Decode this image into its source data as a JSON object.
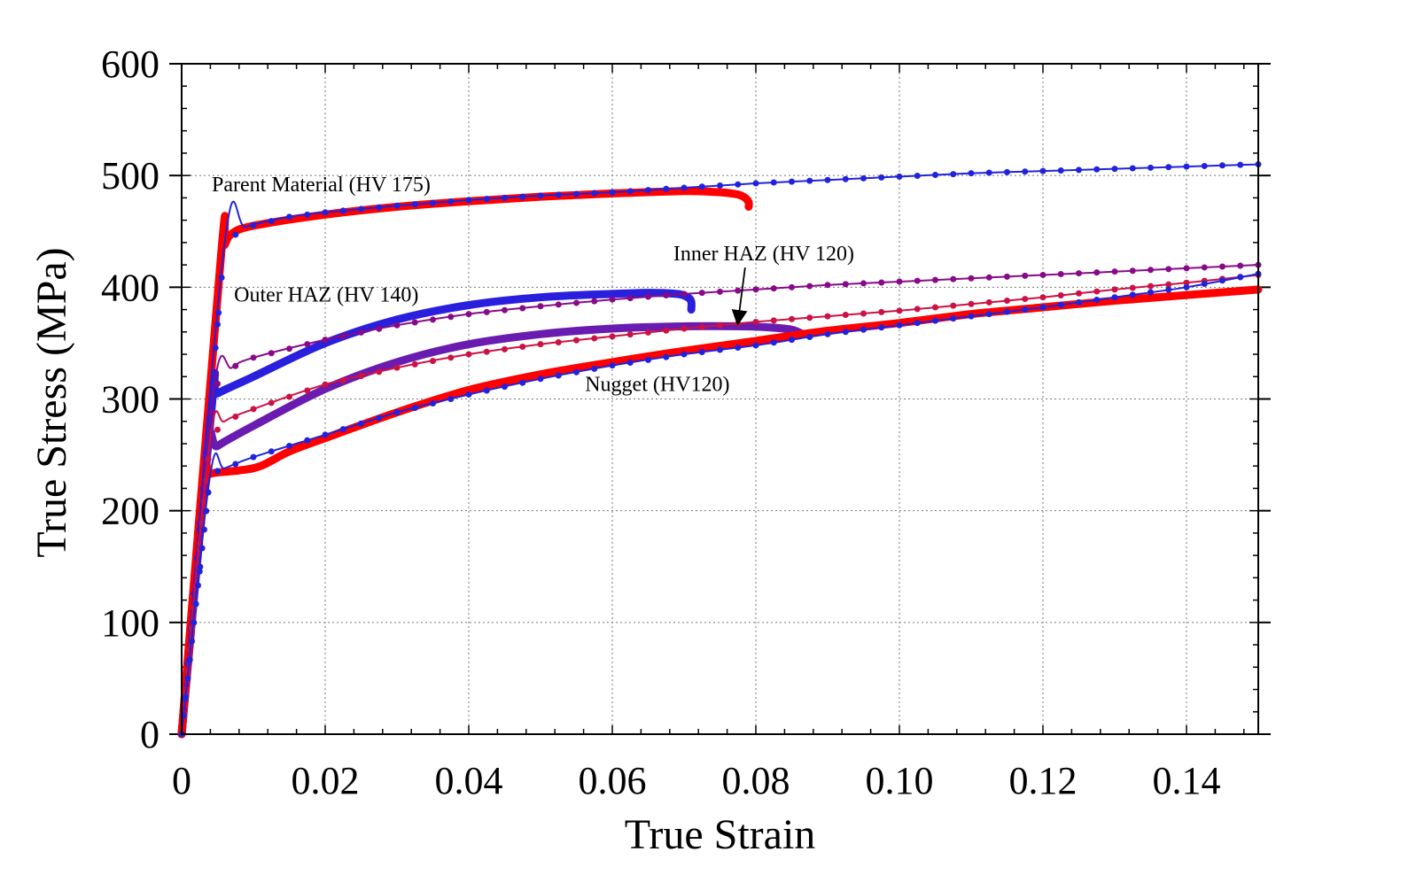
{
  "chart_data": {
    "type": "line",
    "title": "",
    "xlabel": "True Strain",
    "ylabel": "True Stress (MPa)",
    "xlim": [
      0,
      0.15
    ],
    "ylim": [
      0,
      600
    ],
    "xticks": [
      0,
      0.02,
      0.04,
      0.06,
      0.08,
      0.1,
      0.12,
      0.14
    ],
    "xtick_labels": [
      "0",
      "0.02",
      "0.04",
      "0.06",
      "0.08",
      "0.10",
      "0.12",
      "0.14"
    ],
    "yticks": [
      0,
      100,
      200,
      300,
      400,
      500,
      600
    ],
    "ytick_labels": [
      "0",
      "100",
      "200",
      "300",
      "400",
      "500",
      "600"
    ],
    "grid": true,
    "annotations": [
      {
        "text": "Parent Material (HV 175)",
        "x": 0.0042,
        "y": 486
      },
      {
        "text": "Outer HAZ (HV 140)",
        "x": 0.0073,
        "y": 387
      },
      {
        "text": "Inner HAZ (HV 120)",
        "x": 0.0685,
        "y": 424,
        "arrow_to": [
          0.0775,
          365
        ]
      },
      {
        "text": "Nugget (HV120)",
        "x": 0.0562,
        "y": 307
      }
    ],
    "series": [
      {
        "style": "thick",
        "color": "#ff0000",
        "x": [
          0,
          0.0055,
          0.006,
          0.007,
          0.01,
          0.02,
          0.03,
          0.04,
          0.05,
          0.06,
          0.07,
          0.075,
          0.0775,
          0.0785,
          0.079,
          0.079
        ],
        "y": [
          0,
          430,
          438,
          448,
          455,
          465,
          472,
          477,
          481,
          484,
          486,
          485,
          483,
          480,
          476,
          472
        ]
      },
      {
        "style": "marker-line",
        "color": "#2222dd",
        "x": [
          0,
          0.006,
          0.009,
          0.015,
          0.02,
          0.03,
          0.04,
          0.05,
          0.06,
          0.07,
          0.08,
          0.09,
          0.1,
          0.11,
          0.12,
          0.13,
          0.14,
          0.15
        ],
        "y": [
          0,
          440,
          454,
          463,
          467,
          473,
          478,
          482,
          485,
          489,
          493,
          496,
          499,
          502,
          504,
          506,
          508,
          510
        ]
      },
      {
        "style": "thick",
        "color": "#2a1fdd",
        "x": [
          0,
          0.0043,
          0.005,
          0.01,
          0.02,
          0.03,
          0.04,
          0.05,
          0.06,
          0.065,
          0.069,
          0.0705,
          0.071,
          0.071
        ],
        "y": [
          0,
          300,
          305,
          320,
          350,
          371,
          384,
          391,
          394,
          395,
          394,
          391,
          387,
          380
        ]
      },
      {
        "style": "marker-line",
        "color": "#880a88",
        "x": [
          0,
          0.0045,
          0.007,
          0.01,
          0.02,
          0.03,
          0.04,
          0.05,
          0.06,
          0.07,
          0.08,
          0.09,
          0.1,
          0.11,
          0.12,
          0.13,
          0.14,
          0.15
        ],
        "y": [
          0,
          310,
          328,
          337,
          353,
          366,
          376,
          383,
          389,
          394,
          398,
          402,
          405,
          408,
          411,
          414,
          417,
          420
        ]
      },
      {
        "style": "thick",
        "color": "#6a1bb0",
        "x": [
          0,
          0.0035,
          0.005,
          0.01,
          0.02,
          0.03,
          0.04,
          0.05,
          0.06,
          0.07,
          0.078,
          0.082,
          0.085,
          0.0865
        ],
        "y": [
          0,
          250,
          258,
          276,
          309,
          333,
          349,
          358,
          363,
          365,
          365,
          364,
          362,
          358
        ]
      },
      {
        "style": "marker-line",
        "color": "#cc1144",
        "x": [
          0,
          0.004,
          0.006,
          0.01,
          0.02,
          0.03,
          0.04,
          0.05,
          0.06,
          0.07,
          0.08,
          0.09,
          0.1,
          0.11,
          0.12,
          0.13,
          0.14,
          0.15
        ],
        "y": [
          0,
          265,
          280,
          291,
          313,
          328,
          340,
          349,
          356,
          363,
          369,
          374,
          379,
          385,
          391,
          398,
          404,
          411
        ]
      },
      {
        "style": "thick",
        "color": "#ff0000",
        "x": [
          0,
          0.003,
          0.004,
          0.008,
          0.011,
          0.015,
          0.02,
          0.03,
          0.04,
          0.05,
          0.06,
          0.07,
          0.08,
          0.09,
          0.1,
          0.11,
          0.12,
          0.13,
          0.14,
          0.15
        ],
        "y": [
          0,
          225,
          233,
          236,
          240,
          253,
          265,
          288,
          308,
          322,
          333,
          343,
          352,
          361,
          368,
          376,
          382,
          388,
          393,
          398
        ]
      },
      {
        "style": "marker-line",
        "color": "#2222dd",
        "x": [
          0,
          0.004,
          0.006,
          0.01,
          0.02,
          0.03,
          0.04,
          0.05,
          0.06,
          0.07,
          0.08,
          0.09,
          0.1,
          0.11,
          0.12,
          0.13,
          0.14,
          0.15
        ],
        "y": [
          0,
          233,
          238,
          248,
          268,
          288,
          304,
          318,
          330,
          340,
          348,
          358,
          366,
          374,
          382,
          391,
          400,
          412
        ]
      }
    ]
  }
}
